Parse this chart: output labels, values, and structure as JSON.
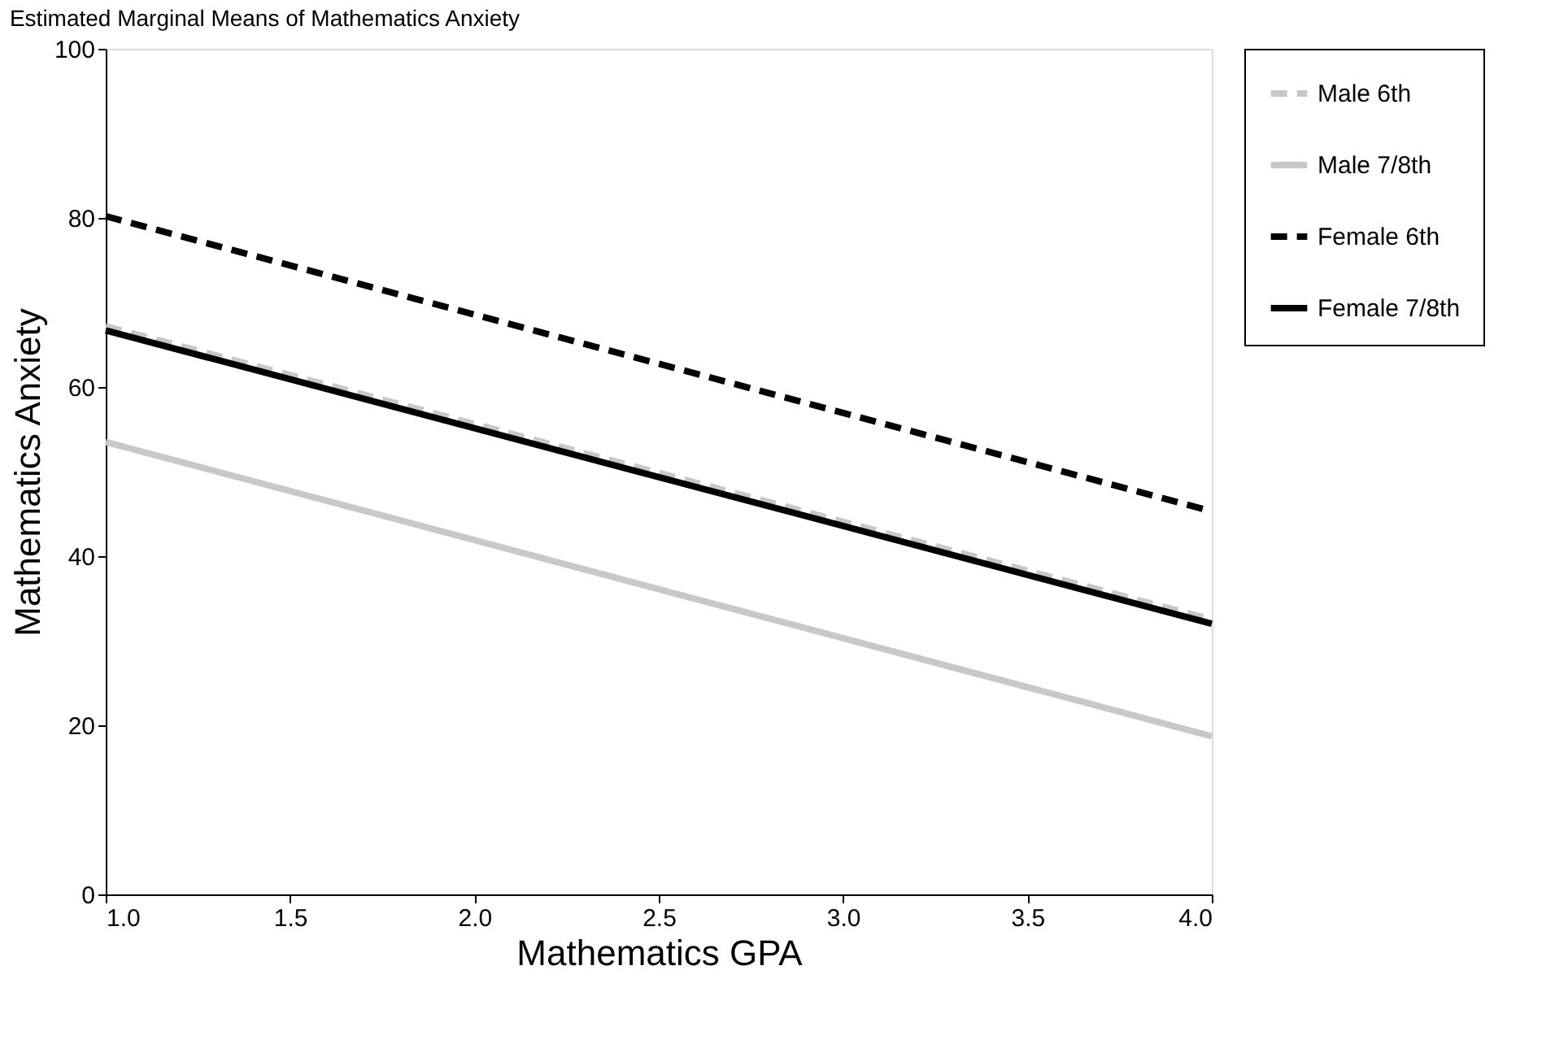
{
  "chart_data": {
    "type": "line",
    "title": "Estimated Marginal Means of Mathematics Anxiety",
    "xlabel": "Mathematics GPA",
    "ylabel": "Mathematics Anxiety",
    "x": [
      1.0,
      4.0
    ],
    "series": [
      {
        "name": "Male 6th",
        "color": "#c8c8c8",
        "line_style": "dashed",
        "values": [
          67.2,
          32.5
        ]
      },
      {
        "name": "Male 7/8th",
        "color": "#c8c8c8",
        "line_style": "solid",
        "values": [
          53.5,
          18.7
        ]
      },
      {
        "name": "Female 6th",
        "color": "#000000",
        "line_style": "dashed",
        "values": [
          80.2,
          45.3
        ]
      },
      {
        "name": "Female 7/8th",
        "color": "#000000",
        "line_style": "solid",
        "values": [
          66.7,
          32.0
        ]
      }
    ],
    "xlim": [
      1.0,
      4.0
    ],
    "xticks": [
      {
        "value": 1.0,
        "label": "1.0"
      },
      {
        "value": 1.5,
        "label": "1.5"
      },
      {
        "value": 2.0,
        "label": "2.0"
      },
      {
        "value": 2.5,
        "label": "2.5"
      },
      {
        "value": 3.0,
        "label": "3.0"
      },
      {
        "value": 3.5,
        "label": "3.5"
      },
      {
        "value": 4.0,
        "label": "4.0"
      }
    ],
    "ylim": [
      0,
      100
    ],
    "yticks": [
      0,
      20,
      40,
      60,
      80,
      100
    ],
    "legend": "right",
    "grid": false,
    "marker": "none"
  }
}
